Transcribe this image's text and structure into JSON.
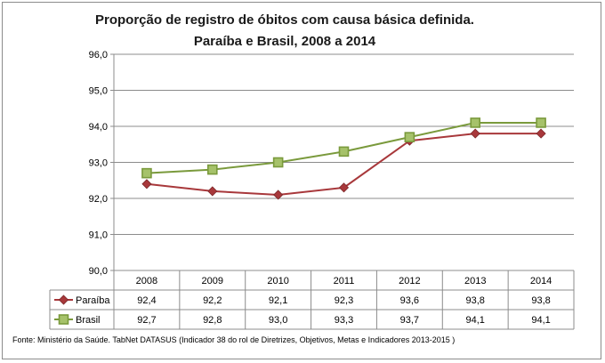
{
  "chart_data": {
    "type": "line",
    "title_line1": "Proporção de registro de óbitos com causa básica definida.",
    "title_line2": "Paraíba e Brasil, 2008 a 2014",
    "categories": [
      "2008",
      "2009",
      "2010",
      "2011",
      "2012",
      "2013",
      "2014"
    ],
    "ylim": [
      90.0,
      96.0
    ],
    "yticks": [
      "90,0",
      "91,0",
      "92,0",
      "93,0",
      "94,0",
      "95,0",
      "96,0"
    ],
    "grid": true,
    "legend": "data-table",
    "series": [
      {
        "name": "Paraíba",
        "values": [
          92.4,
          92.2,
          92.1,
          92.3,
          93.6,
          93.8,
          93.8
        ],
        "labels": [
          "92,4",
          "92,2",
          "92,1",
          "92,3",
          "93,6",
          "93,8",
          "93,8"
        ],
        "color": "#a8383b",
        "marker": "diamond"
      },
      {
        "name": "Brasil",
        "values": [
          92.7,
          92.8,
          93.0,
          93.3,
          93.7,
          94.1,
          94.1
        ],
        "labels": [
          "92,7",
          "92,8",
          "93,0",
          "93,3",
          "93,7",
          "94,1",
          "94,1"
        ],
        "color": "#7a9a3c",
        "marker_fill": "#a6c26a",
        "marker": "square"
      }
    ]
  },
  "source": "Fonte: Ministério da Saúde. TabNet DATASUS (Indicador 38 do rol de Diretrizes, Objetivos, Metas e Indicadores 2013-2015 )"
}
